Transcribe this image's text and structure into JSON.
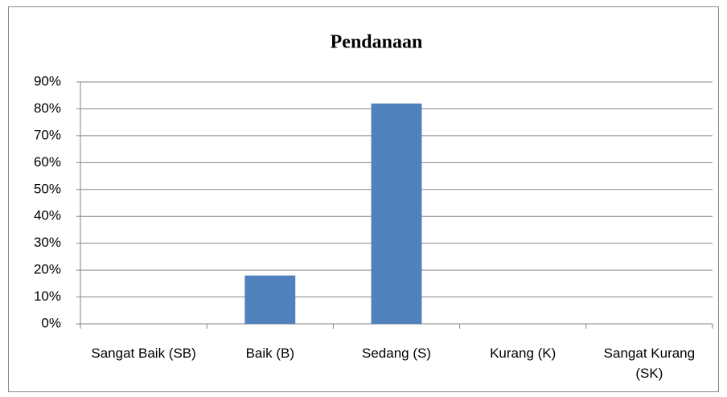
{
  "chart_data": {
    "type": "bar",
    "title": "Pendanaan",
    "categories": [
      "Sangat Baik (SB)",
      "Baik (B)",
      "Sedang (S)",
      "Kurang (K)",
      "Sangat Kurang (SK)"
    ],
    "values": [
      0,
      18,
      82,
      0,
      0
    ],
    "color": "#4f81bd",
    "ylim": [
      0,
      90
    ],
    "yticks": [
      {
        "value": 0,
        "label": "0%"
      },
      {
        "value": 10,
        "label": "10%"
      },
      {
        "value": 20,
        "label": "20%"
      },
      {
        "value": 30,
        "label": "30%"
      },
      {
        "value": 40,
        "label": "40%"
      },
      {
        "value": 50,
        "label": "50%"
      },
      {
        "value": 60,
        "label": "60%"
      },
      {
        "value": 70,
        "label": "70%"
      },
      {
        "value": 80,
        "label": "80%"
      },
      {
        "value": 90,
        "label": "90%"
      }
    ],
    "grid": true
  }
}
